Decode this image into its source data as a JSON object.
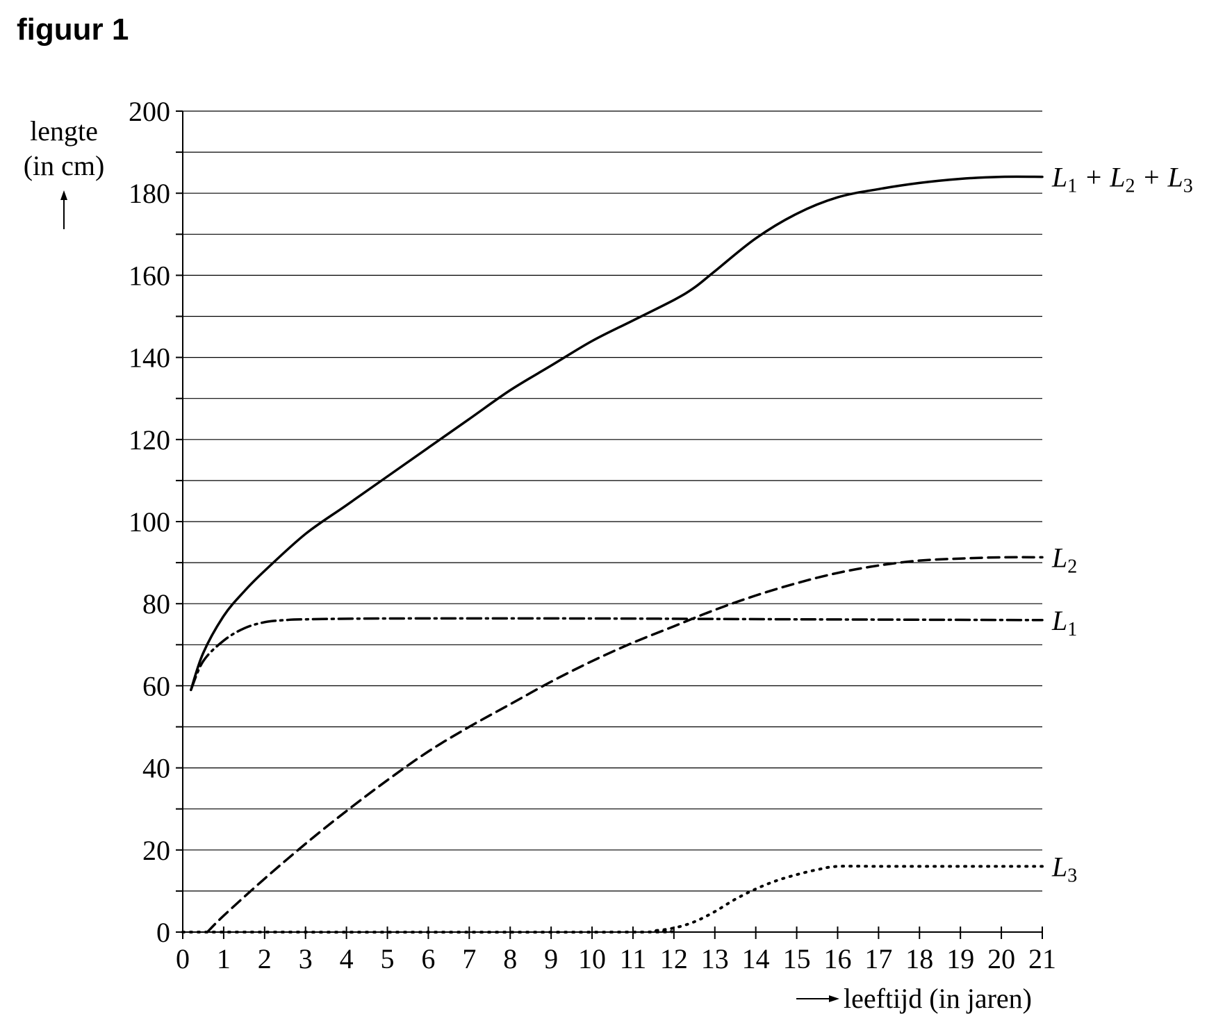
{
  "figure": {
    "title": "figuur 1"
  },
  "chart_data": {
    "type": "line",
    "title": "",
    "ylabel_line1": "lengte",
    "ylabel_line2": "(in cm)",
    "xlabel": "leeftijd (in jaren)",
    "xlim": [
      0,
      21
    ],
    "ylim": [
      0,
      200
    ],
    "x_ticks": [
      0,
      1,
      2,
      3,
      4,
      5,
      6,
      7,
      8,
      9,
      10,
      11,
      12,
      13,
      14,
      15,
      16,
      17,
      18,
      19,
      20,
      21
    ],
    "y_ticks": [
      0,
      20,
      40,
      60,
      80,
      100,
      120,
      140,
      160,
      180,
      200
    ],
    "grid": "horizontal lines every 10 cm",
    "legend": "labels at right end of each line",
    "series": [
      {
        "name": "L1 + L2 + L3",
        "label_parts": [
          "L",
          "1",
          " + ",
          "L",
          "2",
          " + ",
          "L",
          "3"
        ],
        "style": "solid",
        "x": [
          0.2,
          0.5,
          1,
          1.5,
          2,
          3,
          4,
          5,
          6,
          7,
          8,
          9,
          10,
          11,
          12,
          12.5,
          13,
          14,
          15,
          16,
          17,
          18,
          19,
          20,
          21
        ],
        "y": [
          59,
          68,
          77,
          83,
          88,
          97,
          104,
          111,
          118,
          125,
          132,
          138,
          144,
          149,
          154,
          157,
          161,
          169,
          175,
          179,
          181,
          182.5,
          183.5,
          184,
          184
        ]
      },
      {
        "name": "L2",
        "label_parts": [
          "L",
          "2"
        ],
        "style": "dashed",
        "x": [
          0.6,
          1,
          2,
          3,
          4,
          5,
          6,
          7,
          8,
          9,
          10,
          11,
          12,
          13,
          14,
          15,
          16,
          17,
          18,
          19,
          20,
          21
        ],
        "y": [
          0,
          4,
          13,
          21.5,
          29.5,
          37,
          44,
          50,
          55.5,
          61,
          66,
          70.5,
          74.5,
          78.5,
          82,
          85,
          87.5,
          89.3,
          90.5,
          91,
          91.3,
          91.3
        ]
      },
      {
        "name": "L1",
        "label_parts": [
          "L",
          "1"
        ],
        "style": "dash-dot",
        "x": [
          0.2,
          0.5,
          1,
          1.5,
          2,
          2.5,
          3,
          5,
          10,
          15,
          21
        ],
        "y": [
          59,
          66,
          71,
          74,
          75.5,
          76,
          76.2,
          76.4,
          76.4,
          76.2,
          76
        ]
      },
      {
        "name": "L3",
        "label_parts": [
          "L",
          "3"
        ],
        "style": "dotted",
        "x": [
          0,
          11,
          11.5,
          12,
          12.5,
          13,
          13.5,
          14,
          14.5,
          15,
          15.5,
          16,
          17,
          18,
          19,
          20,
          21
        ],
        "y": [
          0,
          0,
          0.3,
          1,
          2.5,
          5,
          8,
          10.5,
          12.5,
          14,
          15.2,
          16,
          16,
          16,
          16,
          16,
          16
        ]
      }
    ]
  }
}
